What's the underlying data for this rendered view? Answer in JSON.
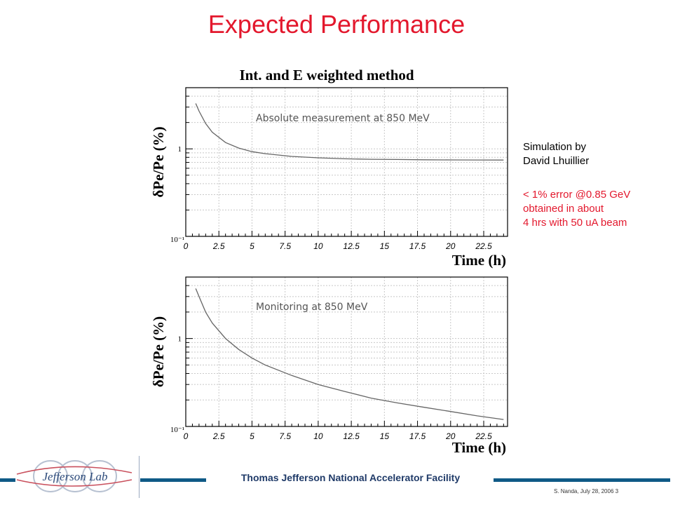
{
  "slide": {
    "title": "Expected Performance",
    "note_black": [
      "Simulation by",
      "David Lhuillier"
    ],
    "note_red": [
      "< 1% error @0.85 GeV",
      "obtained in about",
      "4 hrs with 50 uA beam"
    ],
    "footer_text": "Thomas Jefferson National Accelerator Facility",
    "credit": "S. Nanda, July 28, 2006 3",
    "logo_text": "Jefferson Lab"
  },
  "colors": {
    "title": "#e3182d",
    "footer_bar": "#0f5a86",
    "curve": "#666666",
    "grid": "#c8c8c8"
  },
  "chart_data": [
    {
      "type": "line",
      "title": "Int. and E weighted method",
      "xlabel": "Time (h)",
      "ylabel": "δPe/Pe (%)",
      "annotation": "Absolute measurement at 850 MeV",
      "x_ticks": [
        "0",
        "2.5",
        "5",
        "7.5",
        "10",
        "12.5",
        "15",
        "17.5",
        "20",
        "22.5"
      ],
      "y_tick_labels": [
        "1",
        "10⁻¹"
      ],
      "xlim": [
        0,
        24.3
      ],
      "ylim": [
        0.1,
        5
      ],
      "y_scale": "log",
      "grid": true,
      "series": [
        {
          "x": [
            0.75,
            1,
            1.5,
            2,
            3,
            4,
            5,
            6,
            8,
            10,
            12,
            14,
            16,
            18,
            20,
            22,
            24
          ],
          "y": [
            3.3,
            2.7,
            1.95,
            1.55,
            1.18,
            1.02,
            0.93,
            0.88,
            0.82,
            0.79,
            0.77,
            0.76,
            0.755,
            0.75,
            0.748,
            0.746,
            0.745
          ]
        }
      ]
    },
    {
      "type": "line",
      "title": "",
      "xlabel": "Time (h)",
      "ylabel": "δPe/Pe (%)",
      "annotation": "Monitoring at 850 MeV",
      "x_ticks": [
        "0",
        "2.5",
        "5",
        "7.5",
        "10",
        "12.5",
        "15",
        "17.5",
        "20",
        "22.5"
      ],
      "y_tick_labels": [
        "1",
        "10⁻¹"
      ],
      "xlim": [
        0,
        24.3
      ],
      "ylim": [
        0.1,
        5
      ],
      "y_scale": "log",
      "grid": true,
      "series": [
        {
          "x": [
            0.75,
            1,
            1.5,
            2,
            3,
            4,
            5,
            6,
            8,
            10,
            12,
            14,
            16,
            18,
            20,
            22,
            24
          ],
          "y": [
            3.7,
            3.0,
            2.0,
            1.5,
            1.0,
            0.75,
            0.6,
            0.5,
            0.38,
            0.3,
            0.25,
            0.21,
            0.185,
            0.165,
            0.148,
            0.132,
            0.12
          ]
        }
      ]
    }
  ]
}
